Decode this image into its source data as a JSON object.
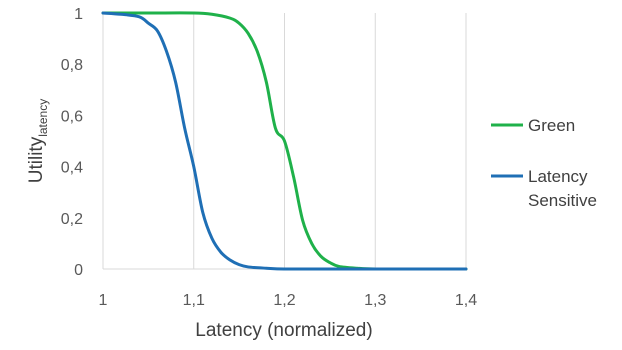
{
  "chart_data": {
    "type": "line",
    "title": "",
    "xlabel": "Latency (normalized)",
    "ylabel": "Utility",
    "ylabel_subscript": "latency",
    "xlim": [
      1,
      1.4
    ],
    "ylim": [
      0,
      1
    ],
    "x_ticks": [
      "1",
      "1,1",
      "1,2",
      "1,3",
      "1,4"
    ],
    "y_ticks": [
      "0",
      "0,2",
      "0,4",
      "0,6",
      "0,8",
      "1"
    ],
    "grid": "vertical",
    "legend_position": "right",
    "series": [
      {
        "name": "Green",
        "color": "#1fb14a",
        "x": [
          1.0,
          1.05,
          1.1,
          1.12,
          1.14,
          1.15,
          1.16,
          1.17,
          1.18,
          1.19,
          1.2,
          1.21,
          1.22,
          1.23,
          1.24,
          1.25,
          1.26,
          1.28,
          1.3,
          1.35,
          1.4
        ],
        "y": [
          1.0,
          1.0,
          1.0,
          0.995,
          0.98,
          0.96,
          0.92,
          0.85,
          0.73,
          0.55,
          0.5,
          0.36,
          0.19,
          0.1,
          0.05,
          0.025,
          0.01,
          0.003,
          0.0,
          0.0,
          0.0
        ]
      },
      {
        "name": "Latency Sensitive",
        "color": "#1f6fb5",
        "label_lines": [
          "Latency",
          "Sensitive"
        ],
        "x": [
          1.0,
          1.02,
          1.04,
          1.05,
          1.06,
          1.07,
          1.08,
          1.09,
          1.1,
          1.11,
          1.12,
          1.13,
          1.14,
          1.15,
          1.16,
          1.18,
          1.2,
          1.25,
          1.3,
          1.4
        ],
        "y": [
          1.0,
          0.995,
          0.985,
          0.96,
          0.93,
          0.85,
          0.73,
          0.55,
          0.4,
          0.22,
          0.12,
          0.065,
          0.035,
          0.017,
          0.008,
          0.003,
          0.0,
          0.0,
          0.0,
          0.0
        ]
      }
    ]
  }
}
